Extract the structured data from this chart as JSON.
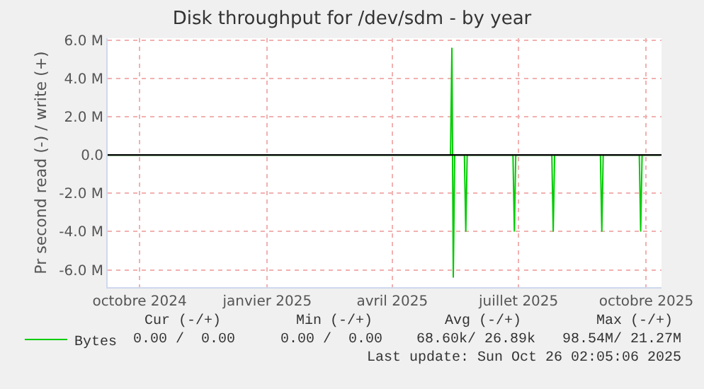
{
  "chart_data": {
    "type": "line",
    "title": "Disk throughput for /dev/sdm - by year",
    "ylabel": "Pr second read (-) / write (+)",
    "x": [
      "2024-09-23",
      "2025-05-28",
      "2025-05-29",
      "2025-05-30",
      "2025-05-31",
      "2025-06-07",
      "2025-06-08",
      "2025-06-09",
      "2025-07-12",
      "2025-07-13",
      "2025-07-14",
      "2025-08-09",
      "2025-08-10",
      "2025-08-11",
      "2025-09-13",
      "2025-09-14",
      "2025-09-15",
      "2025-10-11",
      "2025-10-12",
      "2025-10-13",
      "2025-10-26"
    ],
    "series": [
      {
        "name": "Bytes",
        "color": "#00cc00",
        "values": [
          0,
          0,
          5600000,
          -6400000,
          0,
          0,
          -4000000,
          0,
          0,
          -4000000,
          0,
          0,
          -4000000,
          0,
          0,
          -4000000,
          0,
          0,
          -4000000,
          0,
          0
        ]
      }
    ],
    "xlim": [
      "2024-09-23",
      "2025-10-27"
    ],
    "xticks": [
      {
        "value": "2024-10-16",
        "label": "octobre 2024"
      },
      {
        "value": "2025-01-16",
        "label": "janvier 2025"
      },
      {
        "value": "2025-04-16",
        "label": "avril 2025"
      },
      {
        "value": "2025-07-16",
        "label": "juillet 2025"
      },
      {
        "value": "2025-10-16",
        "label": "octobre 2025"
      }
    ],
    "ylim": [
      -6900000,
      6100000
    ],
    "yticks": [
      {
        "value": -6000000,
        "label": "-6.0 M"
      },
      {
        "value": -4000000,
        "label": "-4.0 M"
      },
      {
        "value": -2000000,
        "label": "-2.0 M"
      },
      {
        "value": 0,
        "label": "0.0"
      },
      {
        "value": 2000000,
        "label": "2.0 M"
      },
      {
        "value": 4000000,
        "label": "4.0 M"
      },
      {
        "value": 6000000,
        "label": "6.0 M"
      }
    ],
    "ref_lines": [
      {
        "axis": "y",
        "value": 0,
        "color": "#000000"
      }
    ],
    "grid": true,
    "legend": "bottom left",
    "marker": "none",
    "line_style": "solid",
    "annotations": [
      "Cur (-/+)",
      "Min (-/+)",
      "Avg (-/+)",
      "Max (-/+)",
      "0.00 /  0.00",
      "0.00 /  0.00",
      "68.60k/ 26.89k",
      "98.54M/ 21.27M",
      "Last update: Sun Oct 26 02:05:06 2025"
    ]
  }
}
